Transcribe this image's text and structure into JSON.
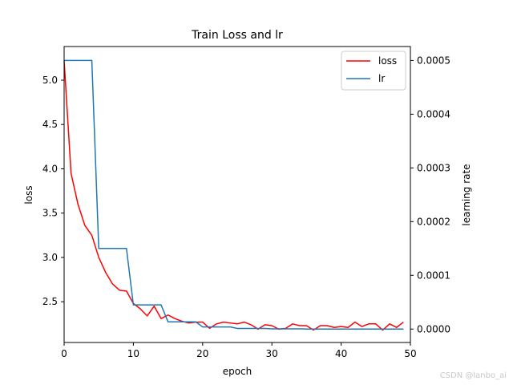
{
  "chart_data": {
    "type": "line",
    "title": "Train Loss and lr",
    "xlabel": "epoch",
    "ylabel_left": "loss",
    "ylabel_right": "learning rate",
    "xlim": [
      0,
      50
    ],
    "ylim_left": [
      2.04,
      5.38
    ],
    "ylim_right": [
      -2.5e-05,
      0.000526
    ],
    "x_ticks": [
      0,
      10,
      20,
      30,
      40,
      50
    ],
    "y_ticks_left": [
      2.5,
      3.0,
      3.5,
      4.0,
      4.5,
      5.0
    ],
    "y_ticks_right": [
      0.0,
      0.0001,
      0.0002,
      0.0003,
      0.0004,
      0.0005
    ],
    "x_tick_labels": [
      "0",
      "10",
      "20",
      "30",
      "40",
      "50"
    ],
    "y_tick_labels_left": [
      "2.5",
      "3.0",
      "3.5",
      "4.0",
      "4.5",
      "5.0"
    ],
    "y_tick_labels_right": [
      "0.0000",
      "0.0001",
      "0.0002",
      "0.0003",
      "0.0004",
      "0.0005"
    ],
    "grid": false,
    "legend_position": "top-right",
    "series": [
      {
        "name": "loss",
        "axis": "left",
        "color": "#ff0000",
        "x": [
          0,
          1,
          2,
          3,
          4,
          5,
          6,
          7,
          8,
          9,
          10,
          11,
          12,
          13,
          14,
          15,
          16,
          17,
          18,
          19,
          20,
          21,
          22,
          23,
          24,
          25,
          26,
          27,
          28,
          29,
          30,
          31,
          32,
          33,
          34,
          35,
          36,
          37,
          38,
          39,
          40,
          41,
          42,
          43,
          44,
          45,
          46,
          47,
          48,
          49
        ],
        "values": [
          5.22,
          3.95,
          3.6,
          3.36,
          3.25,
          3.0,
          2.83,
          2.7,
          2.63,
          2.62,
          2.48,
          2.42,
          2.34,
          2.45,
          2.31,
          2.35,
          2.31,
          2.28,
          2.26,
          2.27,
          2.27,
          2.2,
          2.25,
          2.27,
          2.26,
          2.25,
          2.27,
          2.24,
          2.19,
          2.24,
          2.23,
          2.19,
          2.2,
          2.25,
          2.23,
          2.23,
          2.18,
          2.23,
          2.23,
          2.21,
          2.22,
          2.21,
          2.27,
          2.22,
          2.25,
          2.25,
          2.18,
          2.25,
          2.21,
          2.27
        ]
      },
      {
        "name": "lr",
        "axis": "right",
        "color": "#1f77b4",
        "x": [
          0,
          4,
          5,
          9,
          10,
          14,
          15,
          19,
          20,
          24,
          25,
          29,
          30,
          34,
          35,
          39,
          40,
          44,
          45,
          49
        ],
        "values": [
          0.0005,
          0.0005,
          0.00015,
          0.00015,
          4.5e-05,
          4.5e-05,
          1.35e-05,
          1.35e-05,
          4e-06,
          4e-06,
          1.2e-06,
          1.2e-06,
          4e-07,
          4e-07,
          1e-07,
          1e-07,
          3e-08,
          3e-08,
          1e-08,
          1e-08
        ]
      }
    ]
  },
  "watermark": "CSDN @lanbo_ai"
}
